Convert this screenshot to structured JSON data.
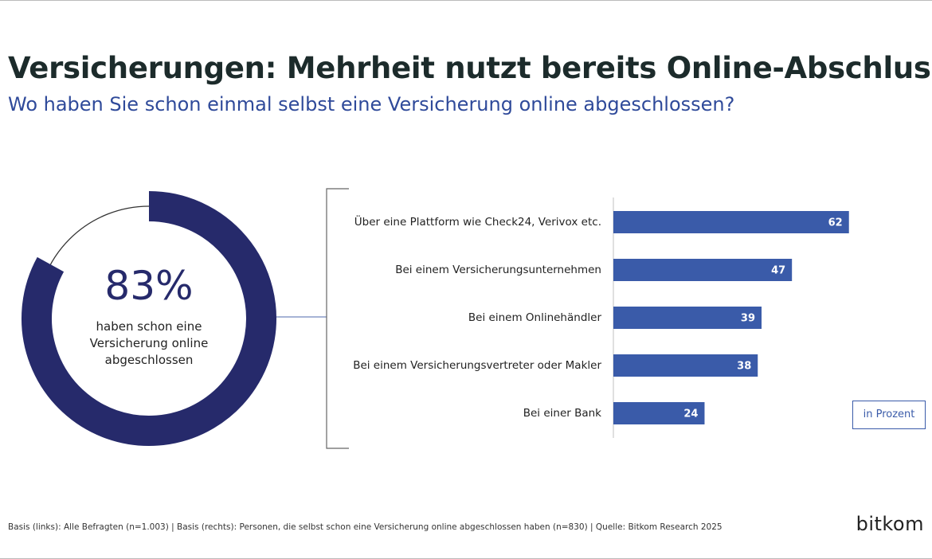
{
  "title": "Versicherungen: Mehrheit nutzt bereits Online-Abschluss",
  "subtitle": "Wo haben Sie schon einmal selbst eine Versicherung online abgeschlossen?",
  "chart_data": [
    {
      "type": "donut",
      "values": [
        83
      ],
      "value_labels": [
        "83%"
      ],
      "label": "haben schon eine Versicherung online abgeschlossen",
      "color": "#262a6b"
    },
    {
      "type": "bar",
      "orientation": "horizontal",
      "categories": [
        "Über eine Plattform wie Check24, Verivox etc.",
        "Bei einem Versicherungsunternehmen",
        "Bei einem Onlinehändler",
        "Bei einem Versicherungsvertreter oder Makler",
        "Bei einer Bank"
      ],
      "values": [
        62,
        47,
        39,
        38,
        24
      ],
      "color": "#3a5ba9",
      "unit_note": "in Prozent"
    }
  ],
  "footnote": "Basis (links): Alle Befragten (n=1.003) | Basis (rechts): Personen, die selbst schon eine Versicherung online abgeschlossen haben (n=830) | Quelle: Bitkom Research 2025",
  "logo": "bitkom"
}
